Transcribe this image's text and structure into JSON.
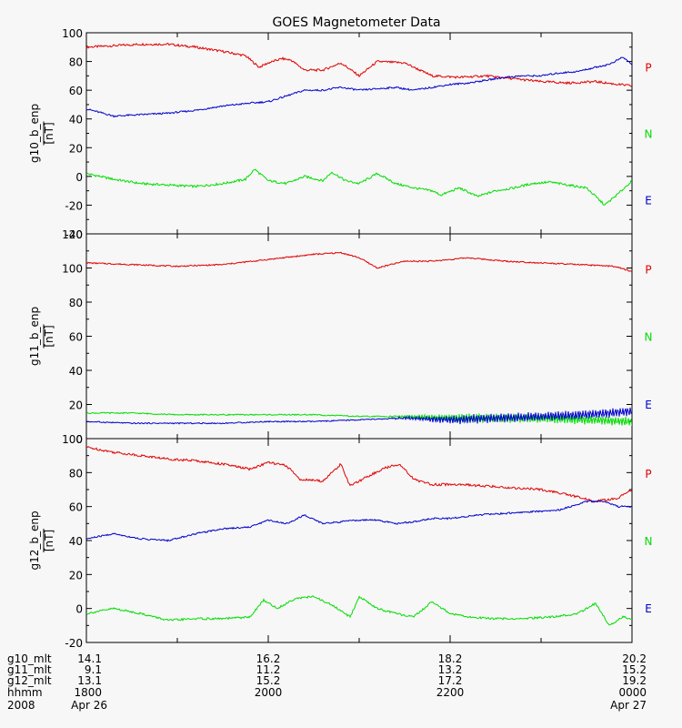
{
  "title": "GOES Magnetometer Data",
  "colors": {
    "P": "#e00000",
    "N": "#00dd00",
    "E": "#0000cc",
    "axis": "#000000",
    "background": "#f7f7f7"
  },
  "legend": [
    {
      "label": "P",
      "color": "#e00000"
    },
    {
      "label": "N",
      "color": "#00dd00"
    },
    {
      "label": "E",
      "color": "#0000cc"
    }
  ],
  "footer": {
    "rows": [
      {
        "label": "g10_mlt",
        "values": [
          "14.1",
          "16.2",
          "18.2",
          "20.2"
        ]
      },
      {
        "label": "g11_mlt",
        "values": [
          "9.1",
          "11.2",
          "13.2",
          "15.2"
        ]
      },
      {
        "label": "g12_mlt",
        "values": [
          "13.1",
          "15.2",
          "17.2",
          "19.2"
        ]
      },
      {
        "label": "hhmm",
        "values": [
          "1800",
          "2000",
          "2200",
          "0000"
        ]
      },
      {
        "label": "2008",
        "values": [
          "Apr 26",
          "",
          "",
          "Apr 27"
        ]
      }
    ]
  },
  "chart_data": [
    {
      "type": "line",
      "ylabel": "g10_b_enp",
      "yunit": "[nT]",
      "ylim": [
        -40,
        100
      ],
      "yticks": [
        -40,
        -20,
        0,
        20,
        40,
        60,
        80,
        100
      ],
      "xlim": [
        0,
        6
      ],
      "series": [
        {
          "name": "P",
          "x": [
            0,
            0.3,
            0.6,
            0.9,
            1.2,
            1.5,
            1.75,
            1.9,
            2.0,
            2.15,
            2.25,
            2.4,
            2.6,
            2.8,
            3.0,
            3.2,
            3.5,
            3.8,
            4.1,
            4.4,
            4.7,
            5.0,
            5.3,
            5.6,
            5.85,
            6.0
          ],
          "values": [
            90,
            91,
            92,
            92,
            90,
            87,
            84,
            76,
            79,
            82,
            81,
            74,
            74,
            79,
            70,
            80,
            79,
            70,
            69,
            70,
            68,
            66,
            65,
            66,
            64,
            63
          ]
        },
        {
          "name": "N",
          "x": [
            0,
            0.3,
            0.6,
            0.9,
            1.2,
            1.5,
            1.75,
            1.85,
            2.0,
            2.2,
            2.4,
            2.6,
            2.7,
            2.85,
            3.0,
            3.2,
            3.4,
            3.6,
            3.8,
            3.9,
            4.1,
            4.3,
            4.5,
            4.7,
            4.9,
            5.1,
            5.3,
            5.5,
            5.7,
            5.85,
            6.0
          ],
          "values": [
            2,
            -2,
            -5,
            -6,
            -7,
            -5,
            -2,
            5,
            -3,
            -5,
            0,
            -3,
            3,
            -3,
            -5,
            2,
            -5,
            -8,
            -10,
            -13,
            -8,
            -14,
            -10,
            -8,
            -5,
            -4,
            -6,
            -8,
            -20,
            -12,
            -3
          ]
        },
        {
          "name": "E",
          "x": [
            0,
            0.3,
            0.6,
            0.9,
            1.2,
            1.5,
            1.8,
            2.0,
            2.2,
            2.4,
            2.6,
            2.8,
            3.0,
            3.2,
            3.4,
            3.6,
            3.8,
            4.0,
            4.2,
            4.4,
            4.6,
            4.8,
            5.0,
            5.2,
            5.4,
            5.6,
            5.75,
            5.9,
            6.0
          ],
          "values": [
            47,
            42,
            43,
            44,
            46,
            49,
            51,
            52,
            56,
            60,
            60,
            62,
            60,
            61,
            62,
            60,
            62,
            64,
            65,
            67,
            69,
            70,
            70,
            72,
            73,
            76,
            78,
            83,
            78
          ]
        }
      ]
    },
    {
      "type": "line",
      "ylabel": "g11_b_enp",
      "yunit": "[nT]",
      "ylim": [
        0,
        120
      ],
      "yticks": [
        0,
        20,
        40,
        60,
        80,
        100,
        120
      ],
      "xlim": [
        0,
        6
      ],
      "series": [
        {
          "name": "P",
          "x": [
            0,
            0.5,
            1.0,
            1.5,
            2.0,
            2.5,
            2.8,
            3.0,
            3.2,
            3.5,
            3.8,
            4.2,
            4.6,
            5.0,
            5.4,
            5.8,
            6.0
          ],
          "values": [
            103,
            102,
            101,
            102,
            105,
            108,
            109,
            106,
            100,
            104,
            104,
            106,
            104,
            103,
            102,
            101,
            98
          ]
        },
        {
          "name": "N",
          "x": [
            0,
            0.5,
            1.0,
            1.5,
            2.0,
            2.5,
            3.0,
            3.5,
            4.0,
            4.5,
            5.0,
            5.5,
            6.0
          ],
          "values": [
            15,
            15,
            14,
            14,
            14,
            14,
            13,
            13,
            12,
            12,
            12,
            11,
            10
          ]
        },
        {
          "name": "E",
          "x": [
            0,
            0.5,
            1.0,
            1.5,
            2.0,
            2.5,
            3.0,
            3.5,
            4.0,
            4.5,
            5.0,
            5.5,
            6.0
          ],
          "values": [
            10,
            9,
            9,
            9,
            10,
            10,
            11,
            12,
            11,
            12,
            13,
            14,
            16
          ]
        }
      ]
    },
    {
      "type": "line",
      "ylabel": "g12_b_enp",
      "yunit": "[nT]",
      "ylim": [
        -20,
        100
      ],
      "yticks": [
        -20,
        0,
        20,
        40,
        60,
        80,
        100
      ],
      "xlim": [
        0,
        6
      ],
      "series": [
        {
          "name": "P",
          "x": [
            0,
            0.3,
            0.6,
            0.9,
            1.2,
            1.5,
            1.8,
            2.0,
            2.2,
            2.35,
            2.6,
            2.8,
            2.9,
            3.1,
            3.3,
            3.45,
            3.6,
            3.8,
            4.1,
            4.4,
            4.7,
            5.0,
            5.3,
            5.6,
            5.85,
            6.0
          ],
          "values": [
            95,
            92,
            90,
            88,
            87,
            85,
            82,
            86,
            84,
            76,
            75,
            85,
            72,
            78,
            83,
            85,
            76,
            73,
            73,
            72,
            71,
            70,
            67,
            63,
            65,
            70
          ]
        },
        {
          "name": "N",
          "x": [
            0,
            0.3,
            0.6,
            0.9,
            1.2,
            1.5,
            1.8,
            1.95,
            2.1,
            2.3,
            2.5,
            2.7,
            2.9,
            3.0,
            3.2,
            3.4,
            3.6,
            3.8,
            4.0,
            4.2,
            4.5,
            4.8,
            5.1,
            5.4,
            5.6,
            5.75,
            5.9,
            6.0
          ],
          "values": [
            -3,
            0,
            -3,
            -7,
            -6,
            -6,
            -5,
            5,
            0,
            6,
            7,
            2,
            -5,
            7,
            0,
            -3,
            -5,
            4,
            -3,
            -5,
            -6,
            -6,
            -5,
            -3,
            3,
            -10,
            -5,
            -6
          ]
        },
        {
          "name": "E",
          "x": [
            0,
            0.3,
            0.6,
            0.9,
            1.2,
            1.5,
            1.8,
            2.0,
            2.2,
            2.4,
            2.6,
            2.8,
            3.0,
            3.2,
            3.4,
            3.6,
            3.8,
            4.0,
            4.3,
            4.6,
            4.9,
            5.2,
            5.5,
            5.7,
            5.85,
            6.0
          ],
          "values": [
            41,
            44,
            41,
            40,
            44,
            47,
            48,
            52,
            50,
            55,
            50,
            51,
            52,
            52,
            50,
            51,
            53,
            53,
            55,
            56,
            57,
            58,
            63,
            63,
            60,
            60
          ]
        }
      ]
    }
  ]
}
